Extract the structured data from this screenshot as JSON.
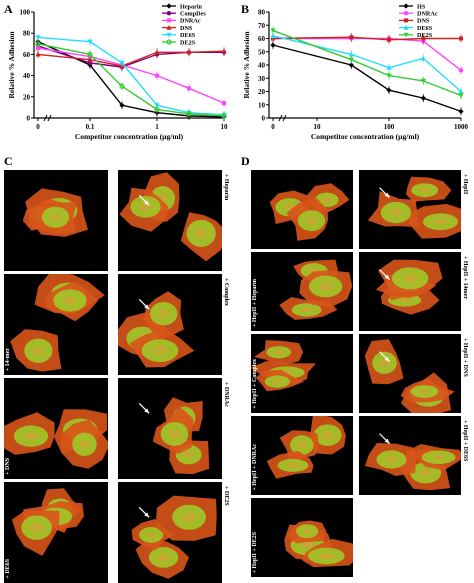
{
  "chart_data": [
    {
      "panel": "A",
      "type": "line",
      "xlabel": "Competitor concentration (µg/ml)",
      "ylabel": "Relative % Adhesion",
      "x_ticks": [
        "0",
        "0.1",
        "1",
        "10"
      ],
      "y_ticks": [
        0,
        20,
        40,
        60,
        80,
        100
      ],
      "ylim": [
        0,
        100
      ],
      "x_scale": "log with break",
      "legend_position": "top-right",
      "x": [
        0,
        0.1,
        0.3,
        1,
        3,
        10
      ],
      "series": [
        {
          "name": "Heparin",
          "color": "#000000",
          "values": [
            72,
            50,
            12,
            5,
            2,
            1
          ]
        },
        {
          "name": "CompDes",
          "color": "#800080",
          "values": [
            68,
            52,
            48,
            60,
            62,
            62
          ]
        },
        {
          "name": "DNRAc",
          "color": "#ff44ff",
          "values": [
            66,
            58,
            50,
            40,
            28,
            14
          ]
        },
        {
          "name": "DNS",
          "color": "#cc2222",
          "values": [
            60,
            55,
            49,
            62,
            62,
            63
          ]
        },
        {
          "name": "DE6S",
          "color": "#22ddff",
          "values": [
            76,
            72,
            52,
            12,
            5,
            3
          ]
        },
        {
          "name": "DE2S",
          "color": "#33cc33",
          "values": [
            70,
            60,
            30,
            8,
            4,
            2
          ]
        }
      ]
    },
    {
      "panel": "B",
      "type": "line",
      "xlabel": "Competitor concentration (µg/ml)",
      "ylabel": "Relative % Adhesion",
      "x_ticks": [
        "0",
        "10",
        "100",
        "1000"
      ],
      "y_ticks": [
        0,
        10,
        20,
        30,
        40,
        50,
        60,
        70,
        80
      ],
      "ylim": [
        0,
        80
      ],
      "x_scale": "log with break",
      "legend_position": "top-right",
      "x": [
        0,
        30,
        100,
        300,
        1000
      ],
      "series": [
        {
          "name": "HS",
          "color": "#000000",
          "values": [
            55,
            40,
            21,
            15,
            5
          ]
        },
        {
          "name": "DNRAc",
          "color": "#ff44ff",
          "values": [
            60,
            60,
            60,
            58,
            36
          ]
        },
        {
          "name": "DNS",
          "color": "#cc2222",
          "values": [
            60,
            61,
            59,
            60,
            60
          ]
        },
        {
          "name": "DE6S",
          "color": "#22ddff",
          "values": [
            62,
            48,
            38,
            45,
            20
          ]
        },
        {
          "name": "DE2S",
          "color": "#33cc33",
          "values": [
            66,
            44,
            32,
            28,
            17
          ]
        }
      ]
    }
  ],
  "panels": {
    "a": {
      "letter": "A"
    },
    "b": {
      "letter": "B"
    },
    "c": {
      "letter": "C",
      "tiles": [
        {
          "label": "",
          "side_label": ""
        },
        {
          "label": "",
          "side_label": "+ Heparin"
        },
        {
          "label": "+ 14-mer",
          "side_label": ""
        },
        {
          "label": "",
          "side_label": "+ Complex"
        },
        {
          "label": "+ DNS",
          "side_label": ""
        },
        {
          "label": "",
          "side_label": "+ DNRAc"
        },
        {
          "label": "+ DE6S",
          "side_label": ""
        },
        {
          "label": "",
          "side_label": "+ DE2S"
        }
      ]
    },
    "d": {
      "letter": "D",
      "tiles": [
        {
          "label": "",
          "side_label": ""
        },
        {
          "label": "",
          "side_label": "+ HepII"
        },
        {
          "label": "+ HepII + Heparin",
          "side_label": ""
        },
        {
          "label": "",
          "side_label": "+ HepII + 14mer"
        },
        {
          "label": "+ HepII + Complex",
          "side_label": ""
        },
        {
          "label": "",
          "side_label": "+ HepII + DNS"
        },
        {
          "label": "+ HepII + DNRAc",
          "side_label": ""
        },
        {
          "label": "",
          "side_label": "+ HepII + DE6S"
        },
        {
          "label": "+ HepII + DE2S",
          "side_label": ""
        }
      ]
    }
  }
}
